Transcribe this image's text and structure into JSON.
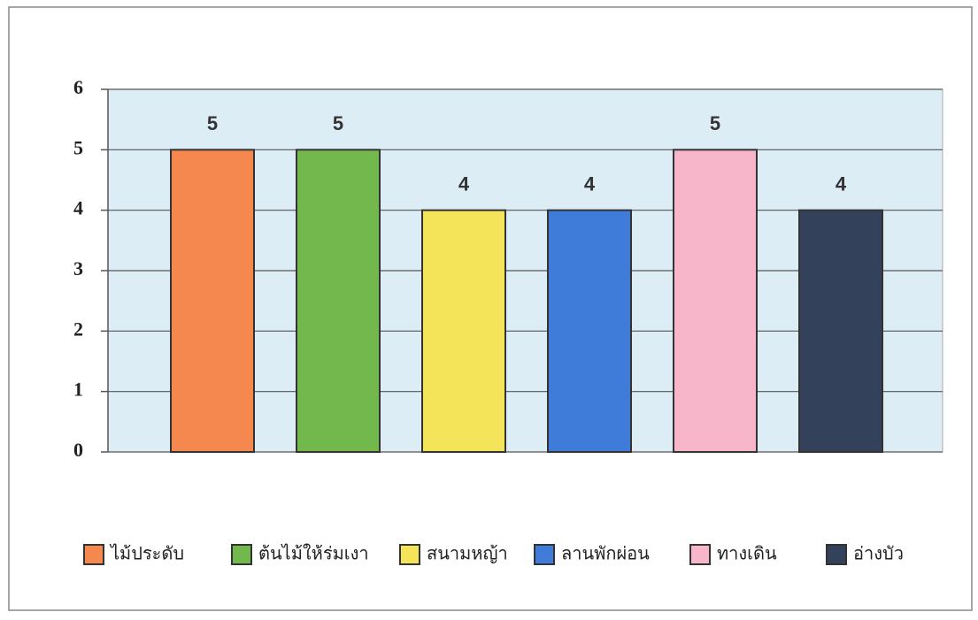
{
  "chart_data": {
    "type": "bar",
    "categories": [
      "ไม้ประดับ",
      "ต้นไม้ให้ร่มเงา",
      "สนามหญ้า",
      "ลานพักผ่อน",
      "ทางเดิน",
      "อ่างบัว"
    ],
    "values": [
      5,
      5,
      4,
      4,
      5,
      4
    ],
    "colors": [
      "#f4884f",
      "#72b84c",
      "#f4e45a",
      "#3f7bd8",
      "#f7b6c9",
      "#33425a"
    ],
    "ylim": [
      0,
      6
    ],
    "yticks": [
      0,
      1,
      2,
      3,
      4,
      5,
      6
    ],
    "grid": true,
    "legend": "bottom"
  }
}
